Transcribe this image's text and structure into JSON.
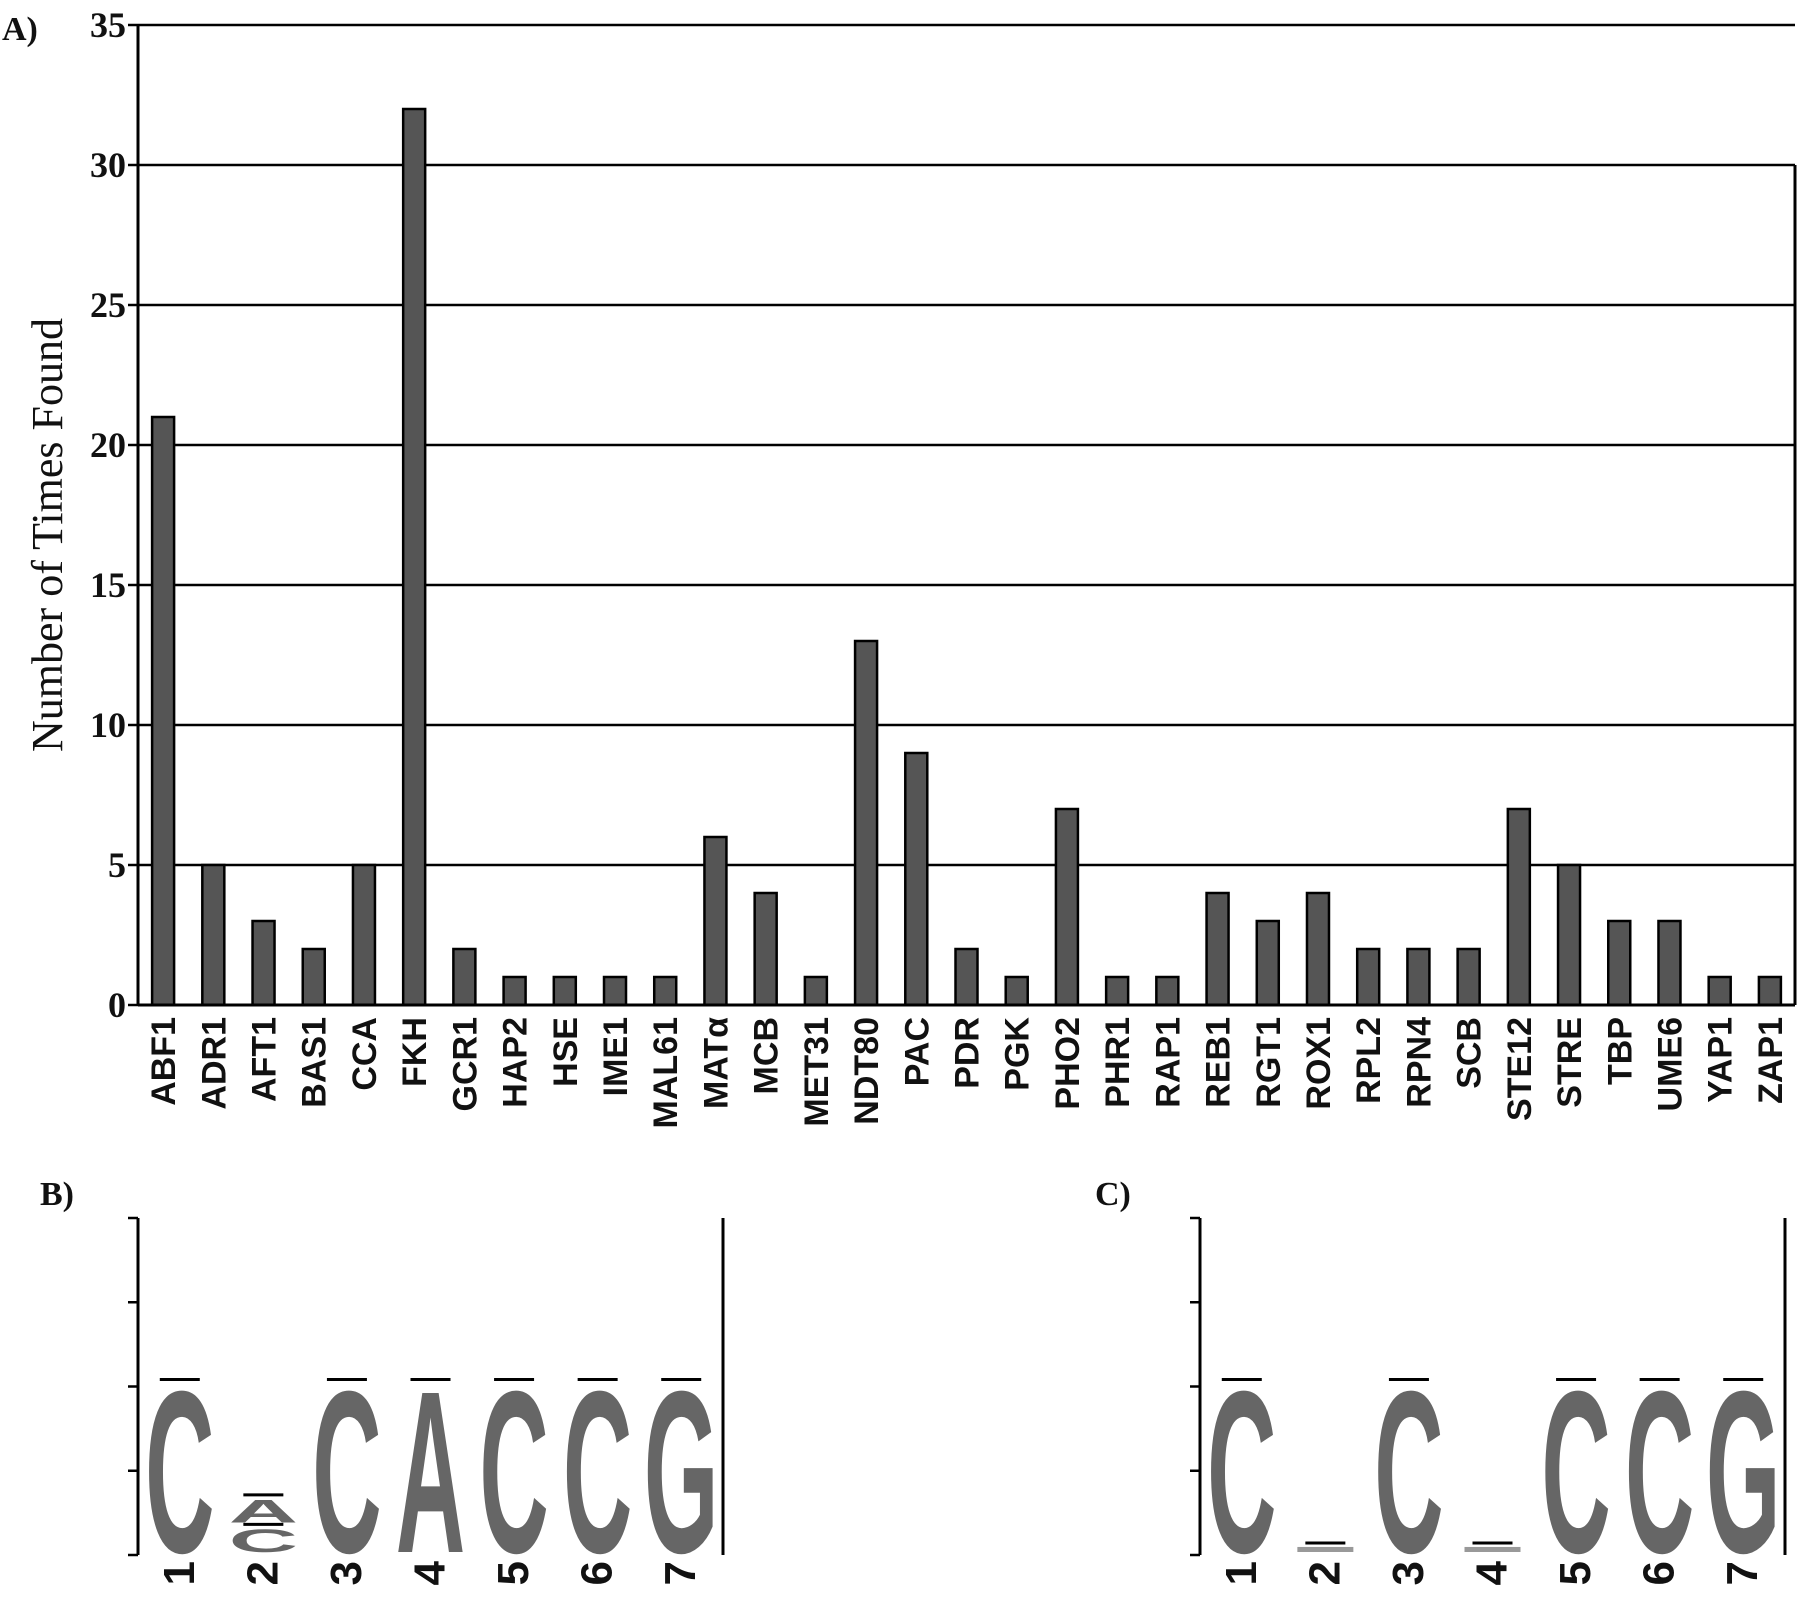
{
  "panel_labels": {
    "a": "A)",
    "b": "B)",
    "c": "C)"
  },
  "chart_data": [
    {
      "type": "bar",
      "title": "",
      "xlabel": "",
      "ylabel": "Number of Times Found",
      "ylim": [
        0,
        35
      ],
      "yticks": [
        "0",
        "5",
        "10",
        "15",
        "20",
        "25",
        "30",
        "35"
      ],
      "grid": true,
      "categories": [
        "ABF1",
        "ADR1",
        "AFT1",
        "BAS1",
        "CCA",
        "FKH",
        "GCR1",
        "HAP2",
        "HSE",
        "IME1",
        "MAL61",
        "MATα",
        "MCB",
        "MET31",
        "NDT80",
        "PAC",
        "PDR",
        "PGK",
        "PHO2",
        "PHR1",
        "RAP1",
        "REB1",
        "RGT1",
        "ROX1",
        "RPL2",
        "RPN4",
        "SCB",
        "STE12",
        "STRE",
        "TBP",
        "UME6",
        "YAP1",
        "ZAP1"
      ],
      "values": [
        21,
        5,
        3,
        2,
        5,
        32,
        2,
        1,
        1,
        1,
        1,
        6,
        4,
        1,
        13,
        9,
        2,
        1,
        7,
        1,
        1,
        4,
        3,
        4,
        2,
        2,
        2,
        7,
        5,
        3,
        3,
        1,
        1
      ],
      "bar_color": "#555555"
    },
    {
      "type": "sequence-logo",
      "positions": [
        "1",
        "2",
        "3",
        "4",
        "5",
        "6",
        "7"
      ],
      "letters": [
        [
          {
            "letter": "C",
            "height": 1.0
          }
        ],
        [
          {
            "letter": "A",
            "height": 0.14
          },
          {
            "letter": "C",
            "height": 0.14
          }
        ],
        [
          {
            "letter": "C",
            "height": 1.0
          }
        ],
        [
          {
            "letter": "A",
            "height": 1.0
          }
        ],
        [
          {
            "letter": "C",
            "height": 1.0
          }
        ],
        [
          {
            "letter": "C",
            "height": 1.0
          }
        ],
        [
          {
            "letter": "G",
            "height": 1.0
          }
        ]
      ],
      "letter_color": "#666666"
    },
    {
      "type": "sequence-logo",
      "positions": [
        "1",
        "2",
        "3",
        "4",
        "5",
        "6",
        "7"
      ],
      "letters": [
        [
          {
            "letter": "C",
            "height": 1.0
          }
        ],
        [
          {
            "letter": "",
            "height": 0.03
          }
        ],
        [
          {
            "letter": "C",
            "height": 1.0
          }
        ],
        [
          {
            "letter": "",
            "height": 0.03
          }
        ],
        [
          {
            "letter": "C",
            "height": 1.0
          }
        ],
        [
          {
            "letter": "C",
            "height": 1.0
          }
        ],
        [
          {
            "letter": "G",
            "height": 1.0
          }
        ]
      ],
      "letter_color": "#666666"
    }
  ]
}
